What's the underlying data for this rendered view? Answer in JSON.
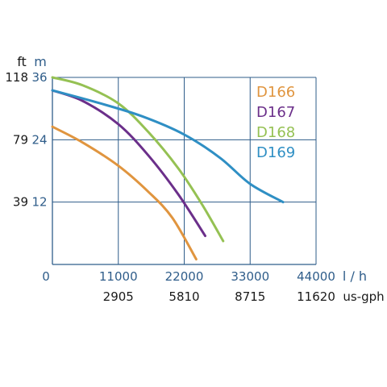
{
  "chart_data": {
    "type": "line",
    "x_unit": "l / h",
    "x_unit_secondary": "us-gph",
    "y_unit_left": "ft",
    "y_unit_right": "m",
    "x_ticks": [
      0,
      11000,
      22000,
      33000,
      44000
    ],
    "x_tick_labels": [
      "0",
      "11000",
      "22000",
      "33000",
      "44000"
    ],
    "x_secondary_ticks": [
      11000,
      22000,
      33000,
      44000
    ],
    "x_secondary_labels": [
      "2905",
      "5810",
      "8715",
      "11620"
    ],
    "y_ticks": [
      12,
      24,
      36
    ],
    "y_tick_labels_m": [
      "12",
      "24",
      "36"
    ],
    "y_tick_labels_ft": [
      "39",
      "79",
      "118"
    ],
    "xlim": [
      0,
      44000
    ],
    "ylim": [
      0,
      36
    ],
    "grid": true,
    "legend_position": "top-right",
    "series": [
      {
        "name": "D166",
        "color": "#e0953f",
        "points": [
          [
            0,
            26.5
          ],
          [
            5000,
            23.5
          ],
          [
            11000,
            19.0
          ],
          [
            16000,
            14.0
          ],
          [
            20000,
            9.0
          ],
          [
            24000,
            1.0
          ]
        ]
      },
      {
        "name": "D167",
        "color": "#6b2f8a",
        "points": [
          [
            0,
            33.5
          ],
          [
            5000,
            31.5
          ],
          [
            11000,
            27.0
          ],
          [
            16000,
            21.0
          ],
          [
            21000,
            13.5
          ],
          [
            25500,
            5.5
          ]
        ]
      },
      {
        "name": "D168",
        "color": "#95c153",
        "points": [
          [
            0,
            36.0
          ],
          [
            5000,
            34.5
          ],
          [
            11000,
            31.0
          ],
          [
            16000,
            25.5
          ],
          [
            21000,
            18.5
          ],
          [
            25000,
            11.5
          ],
          [
            28500,
            4.5
          ]
        ]
      },
      {
        "name": "D169",
        "color": "#2f8fc4",
        "points": [
          [
            0,
            33.5
          ],
          [
            8000,
            31.0
          ],
          [
            15000,
            28.5
          ],
          [
            22000,
            25.0
          ],
          [
            28000,
            20.5
          ],
          [
            33000,
            15.5
          ],
          [
            38500,
            12.0
          ]
        ]
      }
    ]
  }
}
